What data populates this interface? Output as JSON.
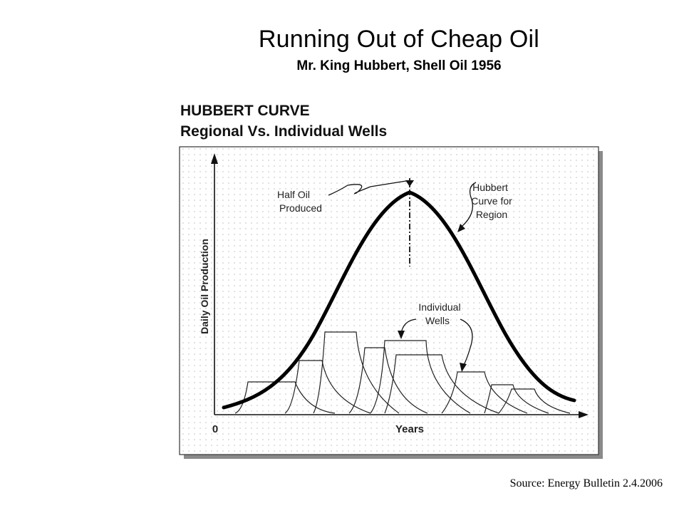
{
  "slide": {
    "title": "Running Out of Cheap Oil",
    "subtitle": "Mr. King Hubbert, Shell Oil 1956",
    "source": "Source: Energy Bulletin 2.4.2006"
  },
  "figure": {
    "heading_line1": "HUBBERT CURVE",
    "heading_line2": "Regional Vs. Individual Wells",
    "y_axis_label": "Daily Oil Production",
    "x_axis_label": "Years",
    "origin_label": "0",
    "annotations": {
      "half_oil": [
        "Half Oil",
        "Produced"
      ],
      "hubbert_curve": [
        "Hubbert",
        "Curve for",
        "Region"
      ],
      "individual_wells": [
        "Individual",
        "Wells"
      ]
    },
    "colors": {
      "plot_background": "#ffffff",
      "grid_dot": "#bdbdbd",
      "curve": "#000000",
      "panel_shadow": "#8a8a8a"
    }
  },
  "chart_data": {
    "type": "line",
    "series": [
      {
        "name": "Hubbert Curve for Region",
        "kind": "bell-shaped regional production"
      },
      {
        "name": "Individual Wells",
        "kind": "step-up then decline, many overlapping wells"
      }
    ],
    "grid": true
  }
}
